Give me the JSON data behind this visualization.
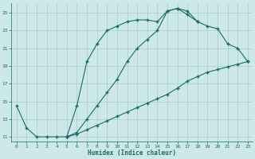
{
  "xlabel": "Humidex (Indice chaleur)",
  "bg_color": "#cce8e8",
  "grid_color": "#aacccc",
  "line_color": "#1a6b6b",
  "line1_x": [
    0,
    1,
    2,
    3,
    4,
    5,
    6,
    7,
    8,
    9,
    10,
    11,
    12,
    13,
    14,
    15,
    16,
    17,
    18
  ],
  "line1_y": [
    14.5,
    12.0,
    11.0,
    11.0,
    11.0,
    11.0,
    14.5,
    19.5,
    21.5,
    23.0,
    23.5,
    24.0,
    24.2,
    24.2,
    24.0,
    25.2,
    25.5,
    25.2,
    24.0
  ],
  "line2_x": [
    5,
    6,
    7,
    8,
    9,
    10,
    11,
    12,
    13,
    14,
    15,
    16,
    17,
    18,
    19,
    20,
    21,
    22,
    23
  ],
  "line2_y": [
    11.0,
    11.5,
    13.0,
    14.5,
    16.0,
    17.5,
    19.5,
    21.0,
    22.0,
    23.0,
    25.2,
    25.5,
    24.8,
    24.0,
    23.5,
    23.2,
    21.5,
    21.0,
    19.5
  ],
  "line3_x": [
    5,
    6,
    7,
    8,
    9,
    10,
    11,
    12,
    13,
    14,
    15,
    16,
    17,
    18,
    19,
    20,
    21,
    22,
    23
  ],
  "line3_y": [
    11.0,
    11.3,
    11.8,
    12.3,
    12.8,
    13.3,
    13.8,
    14.3,
    14.8,
    15.3,
    15.8,
    16.5,
    17.3,
    17.8,
    18.3,
    18.6,
    18.9,
    19.2,
    19.5
  ],
  "xlim": [
    -0.5,
    23.5
  ],
  "ylim": [
    10.5,
    26.2
  ],
  "yticks": [
    11,
    13,
    15,
    17,
    19,
    21,
    23,
    25
  ],
  "xticks": [
    0,
    1,
    2,
    3,
    4,
    5,
    6,
    7,
    8,
    9,
    10,
    11,
    12,
    13,
    14,
    15,
    16,
    17,
    18,
    19,
    20,
    21,
    22,
    23
  ]
}
